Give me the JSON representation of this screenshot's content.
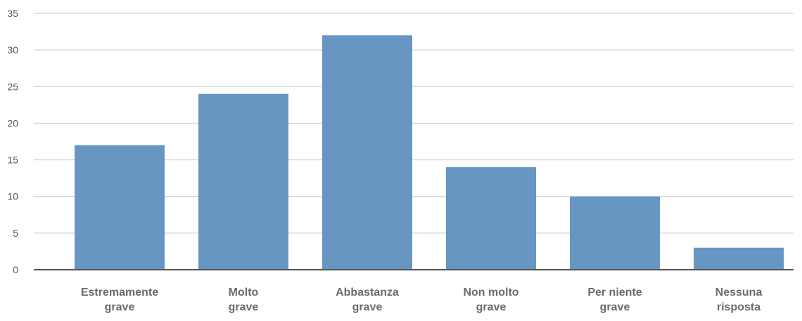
{
  "chart_data": {
    "type": "bar",
    "categories": [
      [
        "Estremamente",
        "grave"
      ],
      [
        "Molto",
        "grave"
      ],
      [
        "Abbastanza",
        "grave"
      ],
      [
        "Non molto",
        "grave"
      ],
      [
        "Per niente",
        "grave"
      ],
      [
        "Nessuna",
        "risposta"
      ]
    ],
    "values": [
      17,
      24,
      32,
      14,
      10,
      3
    ],
    "y_ticks": [
      "0",
      "5",
      "10",
      "15",
      "20",
      "25",
      "30",
      "35"
    ],
    "ylim": [
      0,
      35
    ],
    "grid": true,
    "legend": "none",
    "title": "",
    "xlabel": "",
    "ylabel": ""
  },
  "colors": {
    "bar": "#6796c2",
    "grid": "#c8c8c8",
    "axis": "#555555"
  }
}
